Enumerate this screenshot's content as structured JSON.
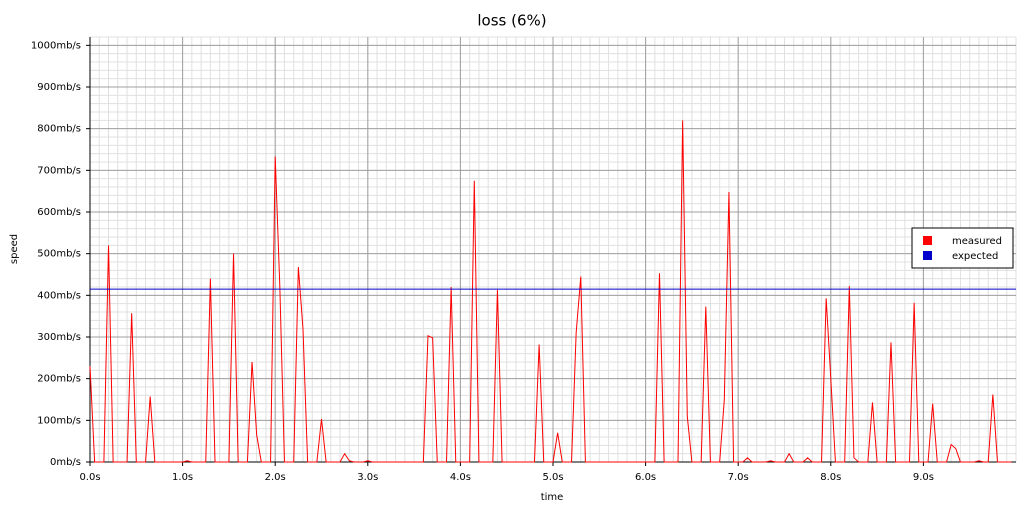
{
  "chart_data": {
    "type": "line",
    "title": "loss (6%)",
    "xlabel": "time",
    "ylabel": "speed",
    "xlim": [
      0,
      10
    ],
    "ylim": [
      0,
      1020
    ],
    "xticks": [
      {
        "value": 0,
        "label": "0.0s"
      },
      {
        "value": 1,
        "label": "1.0s"
      },
      {
        "value": 2,
        "label": "2.0s"
      },
      {
        "value": 3,
        "label": "3.0s"
      },
      {
        "value": 4,
        "label": "4.0s"
      },
      {
        "value": 5,
        "label": "5.0s"
      },
      {
        "value": 6,
        "label": "6.0s"
      },
      {
        "value": 7,
        "label": "7.0s"
      },
      {
        "value": 8,
        "label": "8.0s"
      },
      {
        "value": 9,
        "label": "9.0s"
      }
    ],
    "yticks": [
      {
        "value": 0,
        "label": "0mb/s"
      },
      {
        "value": 100,
        "label": "100mb/s"
      },
      {
        "value": 200,
        "label": "200mb/s"
      },
      {
        "value": 300,
        "label": "300mb/s"
      },
      {
        "value": 400,
        "label": "400mb/s"
      },
      {
        "value": 500,
        "label": "500mb/s"
      },
      {
        "value": 600,
        "label": "600mb/s"
      },
      {
        "value": 700,
        "label": "700mb/s"
      },
      {
        "value": 800,
        "label": "800mb/s"
      },
      {
        "value": 900,
        "label": "900mb/s"
      },
      {
        "value": 1000,
        "label": "1000mb/s"
      }
    ],
    "grid": true,
    "legend": "right",
    "series": [
      {
        "name": "measured",
        "color": "#ff0000",
        "x": [
          0.0,
          0.05,
          0.15,
          0.2,
          0.25,
          0.4,
          0.45,
          0.5,
          0.6,
          0.65,
          0.7,
          1.0,
          1.05,
          1.1,
          1.25,
          1.3,
          1.35,
          1.5,
          1.55,
          1.6,
          1.7,
          1.75,
          1.8,
          1.85,
          1.95,
          2.0,
          2.05,
          2.1,
          2.2,
          2.25,
          2.3,
          2.35,
          2.45,
          2.5,
          2.55,
          2.7,
          2.75,
          2.8,
          2.85,
          2.95,
          3.0,
          3.05,
          3.6,
          3.65,
          3.7,
          3.75,
          3.85,
          3.9,
          3.95,
          4.1,
          4.15,
          4.2,
          4.35,
          4.4,
          4.45,
          4.8,
          4.85,
          4.9,
          5.0,
          5.05,
          5.1,
          5.2,
          5.25,
          5.3,
          5.35,
          6.1,
          6.15,
          6.2,
          6.35,
          6.4,
          6.45,
          6.5,
          6.6,
          6.65,
          6.7,
          6.8,
          6.85,
          6.9,
          6.95,
          7.05,
          7.1,
          7.15,
          7.3,
          7.35,
          7.4,
          7.5,
          7.55,
          7.6,
          7.7,
          7.75,
          7.8,
          7.9,
          7.95,
          8.0,
          8.05,
          8.15,
          8.2,
          8.25,
          8.3,
          8.4,
          8.45,
          8.5,
          8.6,
          8.65,
          8.7,
          8.85,
          8.9,
          8.95,
          9.05,
          9.1,
          9.15,
          9.25,
          9.3,
          9.35,
          9.4,
          9.55,
          9.6,
          9.65,
          9.7,
          9.75,
          9.8,
          9.95
        ],
        "values": [
          230,
          0,
          0,
          520,
          0,
          0,
          357,
          0,
          0,
          157,
          0,
          0,
          3,
          0,
          0,
          440,
          0,
          0,
          500,
          0,
          0,
          240,
          65,
          0,
          0,
          733,
          420,
          0,
          0,
          468,
          320,
          0,
          0,
          103,
          0,
          0,
          20,
          3,
          0,
          0,
          3,
          0,
          0,
          303,
          298,
          0,
          0,
          420,
          0,
          0,
          675,
          0,
          0,
          413,
          0,
          0,
          282,
          0,
          0,
          70,
          0,
          0,
          310,
          445,
          0,
          0,
          453,
          0,
          0,
          820,
          110,
          0,
          0,
          373,
          0,
          0,
          150,
          648,
          0,
          0,
          10,
          0,
          0,
          3,
          0,
          0,
          20,
          0,
          0,
          10,
          0,
          0,
          393,
          200,
          0,
          0,
          422,
          10,
          0,
          0,
          143,
          0,
          0,
          287,
          0,
          0,
          382,
          0,
          0,
          140,
          0,
          0,
          42,
          32,
          0,
          0,
          3,
          0,
          0,
          162,
          0,
          0
        ]
      },
      {
        "name": "expected",
        "color": "#0000cc",
        "x": [
          0,
          10
        ],
        "values": [
          415,
          415
        ]
      }
    ]
  }
}
